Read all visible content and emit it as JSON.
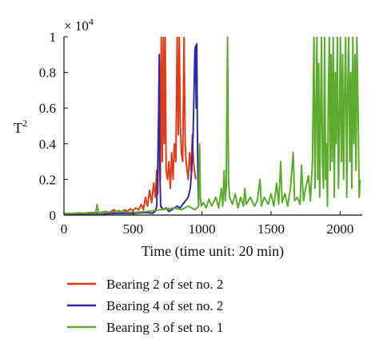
{
  "chart_data": {
    "type": "line",
    "title": "",
    "xlabel": "Time (time unit: 20 min)",
    "ylabel": "T",
    "ylabel_superscript": "2",
    "y_multiplier": "× 10",
    "y_multiplier_exponent": "4",
    "xlim": [
      0,
      2160
    ],
    "ylim": [
      0,
      1
    ],
    "x_ticks": [
      "0",
      "500",
      "1000",
      "1500",
      "2000"
    ],
    "y_ticks": [
      "0",
      "0.2",
      "0.4",
      "0.6",
      "0.8",
      "1"
    ],
    "grid": false,
    "legend_position": "bottom",
    "series": [
      {
        "name": "Bearing 2 of set no. 2",
        "color": "#e03c1c",
        "points": [
          [
            0,
            0.01
          ],
          [
            50,
            0.008
          ],
          [
            100,
            0.012
          ],
          [
            150,
            0.01
          ],
          [
            200,
            0.015
          ],
          [
            250,
            0.012
          ],
          [
            300,
            0.02
          ],
          [
            330,
            0.015
          ],
          [
            360,
            0.03
          ],
          [
            380,
            0.02
          ],
          [
            400,
            0.025
          ],
          [
            420,
            0.018
          ],
          [
            440,
            0.03
          ],
          [
            460,
            0.02
          ],
          [
            480,
            0.035
          ],
          [
            500,
            0.025
          ],
          [
            520,
            0.04
          ],
          [
            540,
            0.03
          ],
          [
            560,
            0.06
          ],
          [
            575,
            0.03
          ],
          [
            590,
            0.1
          ],
          [
            605,
            0.05
          ],
          [
            620,
            0.14
          ],
          [
            635,
            0.07
          ],
          [
            650,
            0.18
          ],
          [
            662,
            0.1
          ],
          [
            672,
            0.25
          ],
          [
            680,
            0.12
          ],
          [
            690,
            0.85
          ],
          [
            698,
            0.2
          ],
          [
            705,
            1.0
          ],
          [
            712,
            0.3
          ],
          [
            720,
            1.0
          ],
          [
            726,
            0.4
          ],
          [
            733,
            1.0
          ],
          [
            740,
            0.25
          ],
          [
            750,
            0.2
          ],
          [
            760,
            0.3
          ],
          [
            770,
            0.15
          ],
          [
            780,
            0.35
          ],
          [
            790,
            0.2
          ],
          [
            800,
            0.4
          ],
          [
            810,
            0.3
          ],
          [
            820,
            1.0
          ],
          [
            828,
            0.45
          ],
          [
            835,
            1.0
          ],
          [
            843,
            0.5
          ],
          [
            850,
            0.35
          ],
          [
            860,
            0.3
          ],
          [
            870,
            1.0
          ],
          [
            878,
            0.4
          ],
          [
            885,
            0.3
          ],
          [
            892,
            0.25
          ],
          [
            900,
            0.2
          ],
          [
            910,
            0.35
          ],
          [
            920,
            0.25
          ],
          [
            930,
            0.45
          ],
          [
            938,
            0.3
          ],
          [
            945,
            0.25
          ],
          [
            955,
            0.2
          ]
        ]
      },
      {
        "name": "Bearing 4 of set no. 2",
        "color": "#2e2a9a",
        "points": [
          [
            0,
            0.005
          ],
          [
            100,
            0.006
          ],
          [
            200,
            0.008
          ],
          [
            300,
            0.007
          ],
          [
            400,
            0.01
          ],
          [
            500,
            0.009
          ],
          [
            550,
            0.012
          ],
          [
            600,
            0.015
          ],
          [
            640,
            0.01
          ],
          [
            660,
            0.02
          ],
          [
            672,
            0.05
          ],
          [
            680,
            0.3
          ],
          [
            686,
            0.6
          ],
          [
            690,
            0.9
          ],
          [
            694,
            0.3
          ],
          [
            700,
            0.05
          ],
          [
            720,
            0.03
          ],
          [
            740,
            0.04
          ],
          [
            760,
            0.02
          ],
          [
            780,
            0.03
          ],
          [
            800,
            0.04
          ],
          [
            820,
            0.05
          ],
          [
            840,
            0.04
          ],
          [
            860,
            0.06
          ],
          [
            880,
            0.08
          ],
          [
            900,
            0.1
          ],
          [
            915,
            0.15
          ],
          [
            925,
            0.25
          ],
          [
            935,
            0.45
          ],
          [
            942,
            0.7
          ],
          [
            948,
            0.92
          ],
          [
            953,
            0.95
          ],
          [
            958,
            0.6
          ],
          [
            962,
            0.96
          ],
          [
            966,
            0.5
          ],
          [
            970,
            0.25
          ],
          [
            975,
            0.05
          ]
        ]
      },
      {
        "name": "Bearing 3 of set no. 1",
        "color": "#5caa2e",
        "points": [
          [
            0,
            0.008
          ],
          [
            100,
            0.01
          ],
          [
            200,
            0.012
          ],
          [
            230,
            0.01
          ],
          [
            240,
            0.06
          ],
          [
            250,
            0.01
          ],
          [
            300,
            0.015
          ],
          [
            400,
            0.02
          ],
          [
            500,
            0.015
          ],
          [
            600,
            0.02
          ],
          [
            700,
            0.03
          ],
          [
            800,
            0.04
          ],
          [
            850,
            0.03
          ],
          [
            900,
            0.05
          ],
          [
            950,
            0.03
          ],
          [
            975,
            0.05
          ],
          [
            982,
            0.4
          ],
          [
            988,
            0.1
          ],
          [
            995,
            0.05
          ],
          [
            1010,
            0.07
          ],
          [
            1030,
            0.04
          ],
          [
            1050,
            0.09
          ],
          [
            1070,
            0.05
          ],
          [
            1100,
            0.1
          ],
          [
            1120,
            0.04
          ],
          [
            1140,
            0.15
          ],
          [
            1150,
            0.05
          ],
          [
            1160,
            0.25
          ],
          [
            1168,
            0.08
          ],
          [
            1175,
            0.15
          ],
          [
            1185,
            1.0
          ],
          [
            1192,
            0.2
          ],
          [
            1200,
            0.1
          ],
          [
            1220,
            0.06
          ],
          [
            1240,
            0.12
          ],
          [
            1260,
            0.04
          ],
          [
            1280,
            0.1
          ],
          [
            1300,
            0.05
          ],
          [
            1310,
            0.15
          ],
          [
            1320,
            0.06
          ],
          [
            1350,
            0.1
          ],
          [
            1380,
            0.05
          ],
          [
            1400,
            0.08
          ],
          [
            1420,
            0.2
          ],
          [
            1430,
            0.05
          ],
          [
            1450,
            0.1
          ],
          [
            1480,
            0.06
          ],
          [
            1500,
            0.12
          ],
          [
            1520,
            0.05
          ],
          [
            1540,
            0.18
          ],
          [
            1555,
            0.06
          ],
          [
            1570,
            0.3
          ],
          [
            1580,
            0.07
          ],
          [
            1600,
            0.12
          ],
          [
            1620,
            0.05
          ],
          [
            1640,
            0.15
          ],
          [
            1660,
            0.35
          ],
          [
            1670,
            0.08
          ],
          [
            1690,
            0.1
          ],
          [
            1710,
            0.06
          ],
          [
            1720,
            0.28
          ],
          [
            1735,
            0.08
          ],
          [
            1750,
            0.15
          ],
          [
            1770,
            0.22
          ],
          [
            1785,
            0.08
          ],
          [
            1800,
            0.3
          ],
          [
            1810,
            1.0
          ],
          [
            1818,
            0.15
          ],
          [
            1825,
            0.6
          ],
          [
            1832,
            1.0
          ],
          [
            1838,
            0.2
          ],
          [
            1845,
            0.85
          ],
          [
            1852,
            0.1
          ],
          [
            1858,
            0.5
          ],
          [
            1865,
            1.0
          ],
          [
            1872,
            0.3
          ],
          [
            1880,
            0.15
          ],
          [
            1888,
            1.0
          ],
          [
            1895,
            0.2
          ],
          [
            1900,
            0.4
          ],
          [
            1908,
            0.05
          ],
          [
            1915,
            0.7
          ],
          [
            1922,
            1.0
          ],
          [
            1928,
            0.25
          ],
          [
            1935,
            0.9
          ],
          [
            1942,
            0.3
          ],
          [
            1950,
            1.0
          ],
          [
            1958,
            0.1
          ],
          [
            1965,
            0.8
          ],
          [
            1972,
            0.4
          ],
          [
            1980,
            1.0
          ],
          [
            1988,
            0.15
          ],
          [
            1995,
            0.5
          ],
          [
            2002,
            1.0
          ],
          [
            2010,
            0.3
          ],
          [
            2018,
            0.9
          ],
          [
            2025,
            0.2
          ],
          [
            2032,
            0.65
          ],
          [
            2040,
            1.0
          ],
          [
            2048,
            0.1
          ],
          [
            2055,
            0.7
          ],
          [
            2062,
            1.0
          ],
          [
            2070,
            0.3
          ],
          [
            2078,
            0.8
          ],
          [
            2085,
            0.15
          ],
          [
            2092,
            1.0
          ],
          [
            2100,
            0.4
          ],
          [
            2108,
            0.9
          ],
          [
            2115,
            0.25
          ],
          [
            2122,
            1.0
          ],
          [
            2130,
            0.6
          ],
          [
            2138,
            0.1
          ],
          [
            2145,
            0.2
          ]
        ]
      }
    ]
  }
}
